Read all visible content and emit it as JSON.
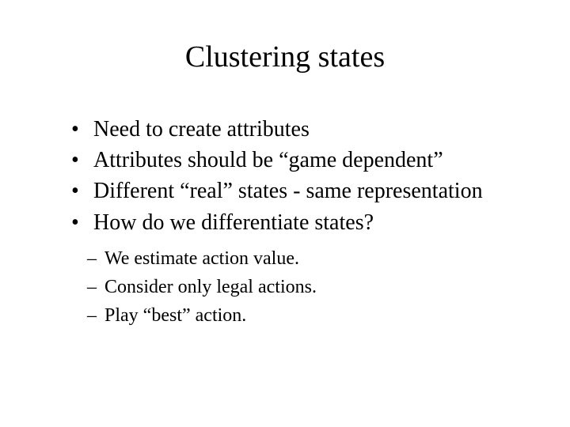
{
  "title": "Clustering states",
  "bullets": [
    "Need to create attributes",
    "Attributes should be “game dependent”",
    "Different “real” states - same representation",
    "How do we differentiate states?"
  ],
  "subbullets": [
    "We estimate action value.",
    "Consider only legal actions.",
    "Play “best” action."
  ],
  "colors": {
    "background": "#ffffff",
    "text": "#000000"
  },
  "typography": {
    "font_family": "Times New Roman",
    "title_fontsize": 38,
    "bullet_fontsize": 28,
    "subbullet_fontsize": 24
  }
}
